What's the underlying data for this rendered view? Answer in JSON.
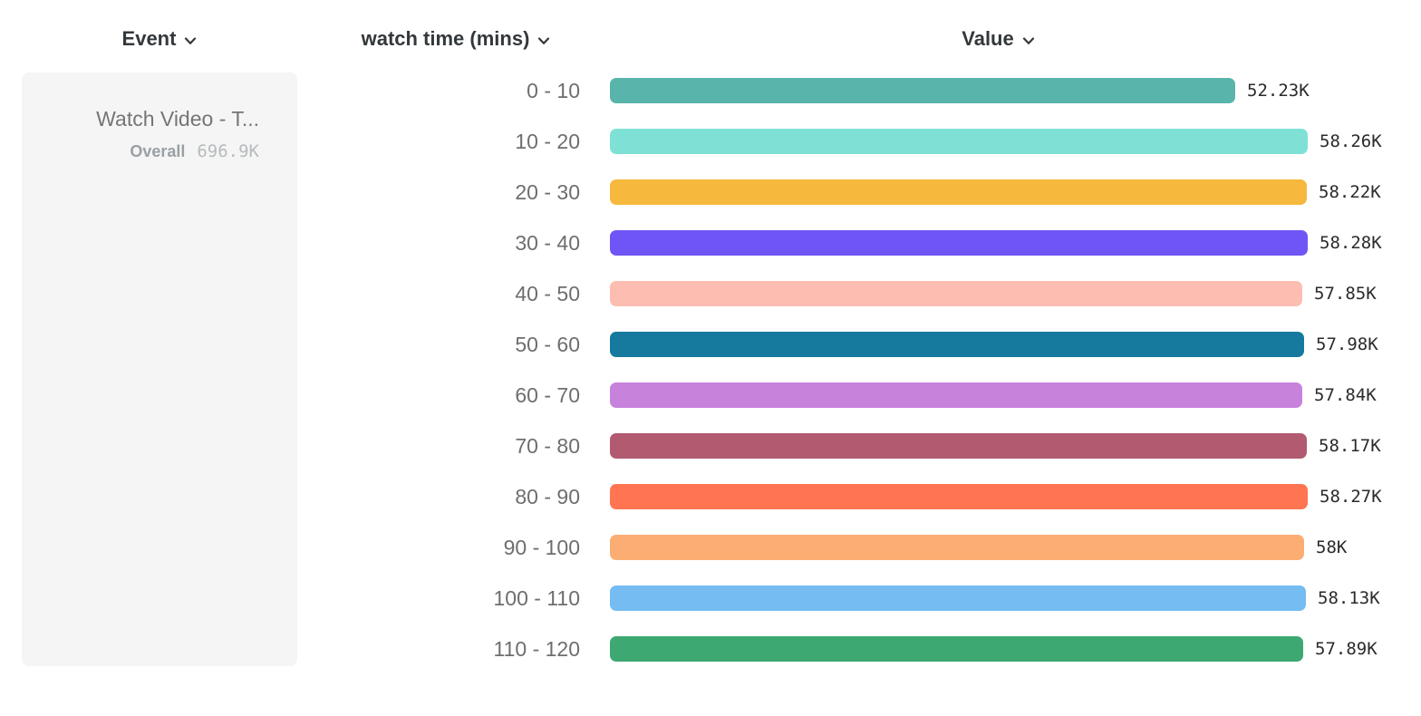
{
  "header": {
    "columns": [
      {
        "label": "Event"
      },
      {
        "label": "watch time (mins)"
      },
      {
        "label": "Value"
      }
    ],
    "chevron_icon": "chevron-down",
    "chevron_color": "#33383b"
  },
  "event_card": {
    "title": "Watch Video - T...",
    "overall_label": "Overall",
    "overall_value": "696.9K"
  },
  "chart_data": {
    "type": "bar",
    "orientation": "horizontal",
    "title": "",
    "xlabel": "Value",
    "ylabel": "watch time (mins)",
    "categories": [
      "0 - 10",
      "10 - 20",
      "20 - 30",
      "30 - 40",
      "40 - 50",
      "50 - 60",
      "60 - 70",
      "70 - 80",
      "80 - 90",
      "90 - 100",
      "100 - 110",
      "110 - 120"
    ],
    "values": [
      52.23,
      58.26,
      58.22,
      58.28,
      57.85,
      57.98,
      57.84,
      58.17,
      58.27,
      58,
      58.13,
      57.89
    ],
    "value_unit": "K",
    "value_labels": [
      "52.23K",
      "58.26K",
      "58.22K",
      "58.28K",
      "57.85K",
      "57.98K",
      "57.84K",
      "58.17K",
      "58.27K",
      "58K",
      "58.13K",
      "57.89K"
    ],
    "colors": [
      "#59b4ab",
      "#7fe1d5",
      "#f6b93e",
      "#6f55f5",
      "#fdbdb0",
      "#16799e",
      "#c782dc",
      "#b25a70",
      "#ff7551",
      "#fcad73",
      "#74bcf1",
      "#3ea873"
    ],
    "xlim": [
      0,
      58.28
    ],
    "grid": false,
    "legend": false,
    "overall_total": "696.9K"
  }
}
